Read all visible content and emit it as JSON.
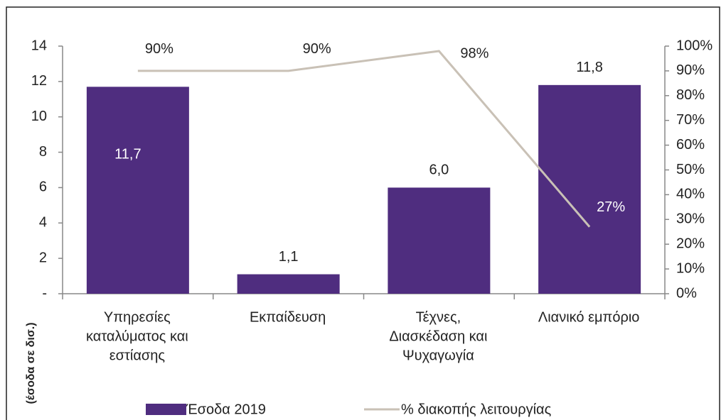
{
  "chart_data": {
    "type": "bar-line",
    "categories": [
      [
        "Υπηρεσίες",
        "καταλύματος και",
        "εστίασης"
      ],
      [
        "Εκπαίδευση"
      ],
      [
        "Τέχνες,",
        "Διασκέδαση και",
        "Ψυχαγωγία"
      ],
      [
        "Λιανικό εμπόριο"
      ]
    ],
    "ylabel": "(έσοδα σε δισ.)",
    "ylim": [
      0,
      14
    ],
    "yticks": [
      {
        "value": 0,
        "label": "-"
      },
      2,
      4,
      6,
      8,
      10,
      12,
      14
    ],
    "y2lim": [
      0,
      100
    ],
    "y2ticks": [
      {
        "value": 0,
        "label": "0%"
      },
      {
        "value": 10,
        "label": "10%"
      },
      {
        "value": 20,
        "label": "20%"
      },
      {
        "value": 30,
        "label": "30%"
      },
      {
        "value": 40,
        "label": "40%"
      },
      {
        "value": 50,
        "label": "50%"
      },
      {
        "value": 60,
        "label": "60%"
      },
      {
        "value": 70,
        "label": "70%"
      },
      {
        "value": 80,
        "label": "80%"
      },
      {
        "value": 90,
        "label": "90%"
      },
      {
        "value": 100,
        "label": "100%"
      }
    ],
    "series": [
      {
        "name": "Έσοδα 2019",
        "type": "bar",
        "color": "#4f2d7f",
        "values": [
          11.7,
          1.1,
          6.0,
          11.8
        ],
        "value_labels": [
          "11,7",
          "1,1",
          "6,0",
          "11,8"
        ]
      },
      {
        "name": "% διακοπής λειτουργίας",
        "type": "line",
        "axis": "y2",
        "color": "#c9c1b6",
        "values": [
          90,
          90,
          98,
          27
        ],
        "value_labels": [
          "90%",
          "90%",
          "98%",
          "27%"
        ]
      }
    ]
  }
}
